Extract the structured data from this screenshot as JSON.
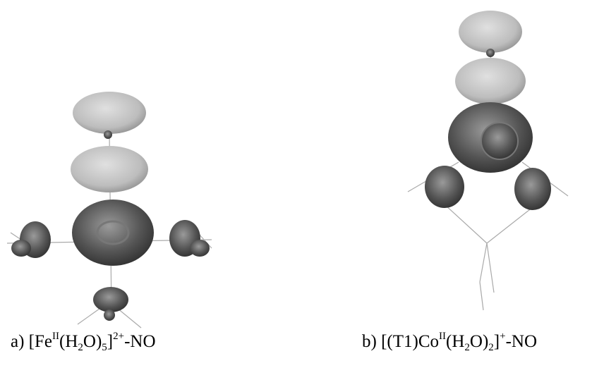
{
  "panels": [
    {
      "caption": [
        "a) [Fe",
        "II",
        "(H",
        "2",
        "O)",
        "5",
        "]",
        "2+",
        "-NO"
      ]
    },
    {
      "caption": [
        "b) [(T1)Co",
        "II",
        "(H",
        "2",
        "O)",
        "2",
        "]",
        "+",
        "-NO"
      ]
    }
  ]
}
